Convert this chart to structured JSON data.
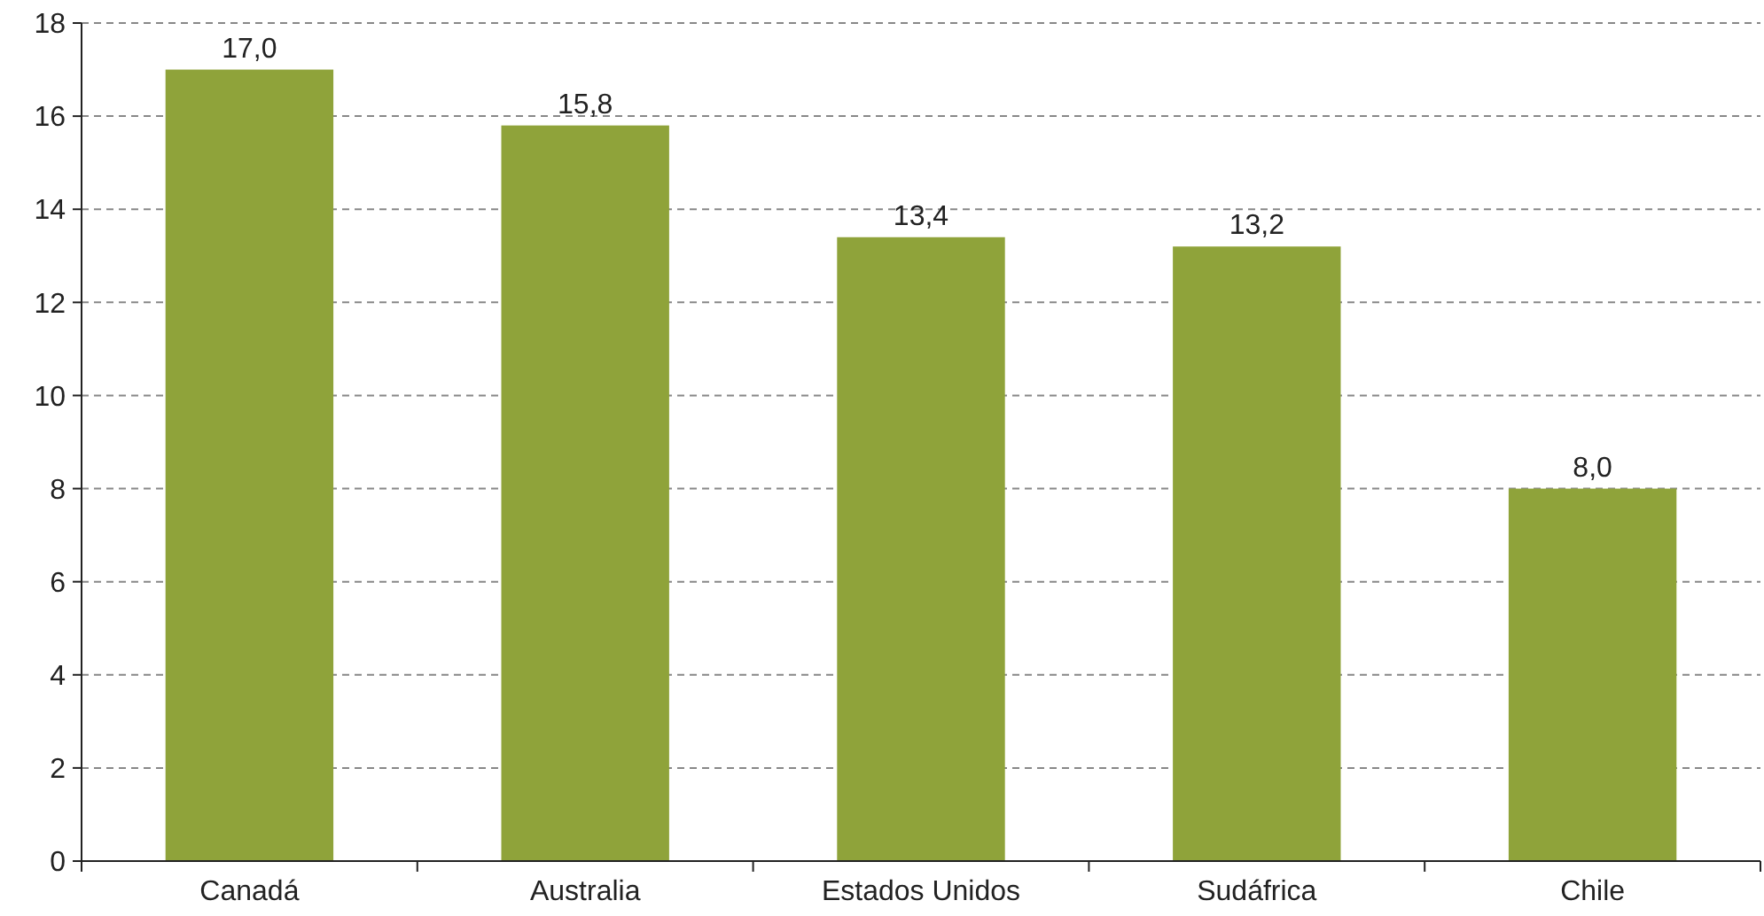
{
  "chart_data": {
    "type": "bar",
    "categories": [
      "Canadá",
      "Australia",
      "Estados Unidos",
      "Sudáfrica",
      "Chile"
    ],
    "values": [
      17.0,
      15.8,
      13.4,
      13.2,
      8.0
    ],
    "value_labels": [
      "17,0",
      "15,8",
      "13,4",
      "13,2",
      "8,0"
    ],
    "color": "#8fa33a",
    "ylim": [
      0,
      18
    ],
    "yticks": [
      0,
      2,
      4,
      6,
      8,
      10,
      12,
      14,
      16,
      18
    ],
    "grid": "y"
  }
}
